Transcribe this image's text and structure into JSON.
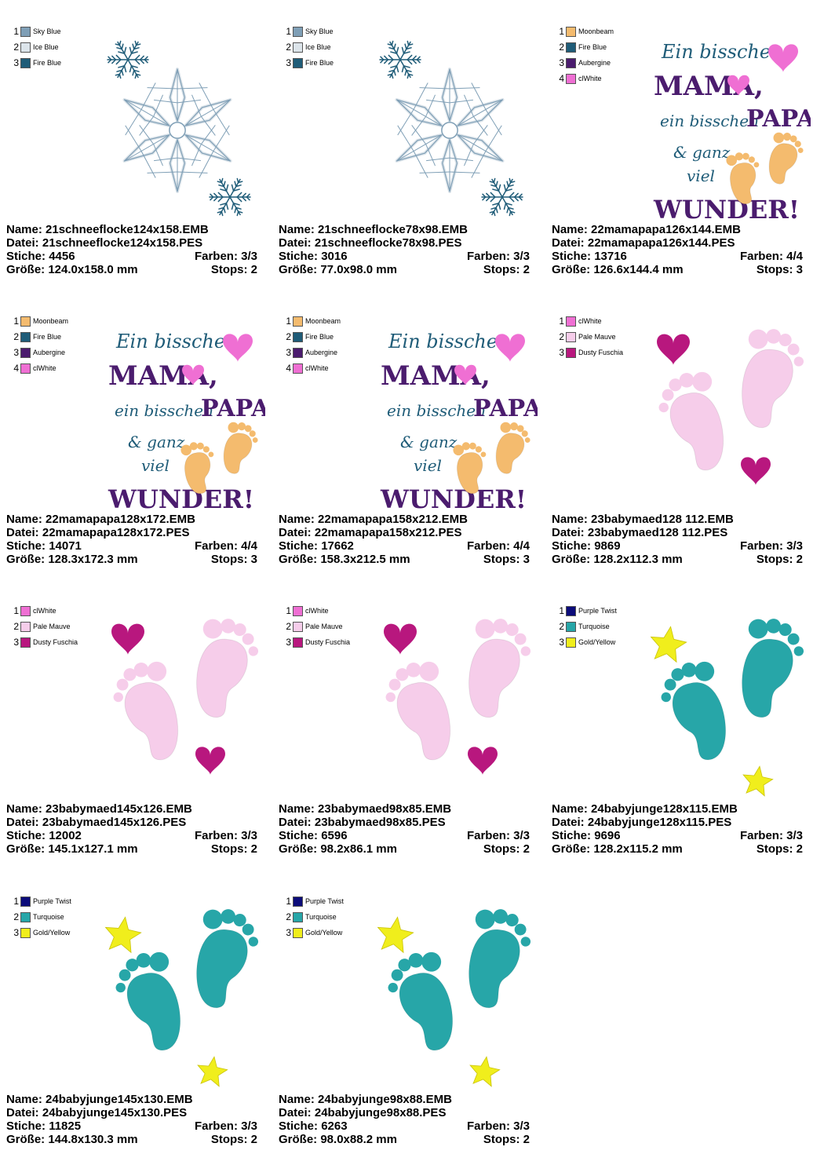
{
  "labels": {
    "name": "Name:",
    "file": "Datei:",
    "stitches": "Stiche:",
    "colors": "Farben:",
    "size": "Größe:",
    "stops": "Stops:"
  },
  "thread_colors": {
    "Sky Blue": "#7f9fb6",
    "Ice Blue": "#dce4ea",
    "Fire Blue": "#1f5c78",
    "Moonbeam": "#f4bb6e",
    "Aubergine": "#4b1c6e",
    "clWhite": "#ef6fd3",
    "Pale Mauve": "#f6cdea",
    "Dusty Fuschia": "#b8177e",
    "Purple Twist": "#0c0c7a",
    "Turquoise": "#27a6a8",
    "Gold/Yellow": "#f0ee1c"
  },
  "design_text": {
    "line1": "Ein bisschen",
    "line2": "MAMA,",
    "line3a": "ein bisschen",
    "line3b": "PAPA,",
    "line4": "& ganz",
    "line5": "viel",
    "line6": "WUNDER!"
  },
  "designs": [
    {
      "motif": "snowflake-icon",
      "threads": [
        {
          "num": "1",
          "name": "Sky Blue"
        },
        {
          "num": "2",
          "name": "Ice Blue"
        },
        {
          "num": "3",
          "name": "Fire Blue"
        }
      ],
      "name": "21schneeflocke124x158.EMB",
      "file": "21schneeflocke124x158.PES",
      "stitches": "4456",
      "colors": "3/3",
      "size": "124.0x158.0 mm",
      "stops": "2"
    },
    {
      "motif": "snowflake-icon",
      "threads": [
        {
          "num": "1",
          "name": "Sky Blue"
        },
        {
          "num": "2",
          "name": "Ice Blue"
        },
        {
          "num": "3",
          "name": "Fire Blue"
        }
      ],
      "name": "21schneeflocke78x98.EMB",
      "file": "21schneeflocke78x98.PES",
      "stitches": "3016",
      "colors": "3/3",
      "size": "77.0x98.0 mm",
      "stops": "2"
    },
    {
      "motif": "mama-papa-text-icon",
      "threads": [
        {
          "num": "1",
          "name": "Moonbeam"
        },
        {
          "num": "2",
          "name": "Fire Blue"
        },
        {
          "num": "3",
          "name": "Aubergine"
        },
        {
          "num": "4",
          "name": "clWhite"
        }
      ],
      "name": "22mamapapa126x144.EMB",
      "file": "22mamapapa126x144.PES",
      "stitches": "13716",
      "colors": "4/4",
      "size": "126.6x144.4 mm",
      "stops": "3"
    },
    {
      "motif": "mama-papa-text-icon",
      "threads": [
        {
          "num": "1",
          "name": "Moonbeam"
        },
        {
          "num": "2",
          "name": "Fire Blue"
        },
        {
          "num": "3",
          "name": "Aubergine"
        },
        {
          "num": "4",
          "name": "clWhite"
        }
      ],
      "name": "22mamapapa128x172.EMB",
      "file": "22mamapapa128x172.PES",
      "stitches": "14071",
      "colors": "4/4",
      "size": "128.3x172.3 mm",
      "stops": "3"
    },
    {
      "motif": "mama-papa-text-icon",
      "threads": [
        {
          "num": "1",
          "name": "Moonbeam"
        },
        {
          "num": "2",
          "name": "Fire Blue"
        },
        {
          "num": "3",
          "name": "Aubergine"
        },
        {
          "num": "4",
          "name": "clWhite"
        }
      ],
      "name": "22mamapapa158x212.EMB",
      "file": "22mamapapa158x212.PES",
      "stitches": "17662",
      "colors": "4/4",
      "size": "158.3x212.5 mm",
      "stops": "3"
    },
    {
      "motif": "baby-feet-hearts-icon",
      "threads": [
        {
          "num": "1",
          "name": "clWhite"
        },
        {
          "num": "2",
          "name": "Pale Mauve"
        },
        {
          "num": "3",
          "name": "Dusty Fuschia"
        }
      ],
      "name": "23babymaed128 112.EMB",
      "file": "23babymaed128 112.PES",
      "stitches": "9869",
      "colors": "3/3",
      "size": "128.2x112.3 mm",
      "stops": "2"
    },
    {
      "motif": "baby-feet-hearts-icon",
      "threads": [
        {
          "num": "1",
          "name": "clWhite"
        },
        {
          "num": "2",
          "name": "Pale Mauve"
        },
        {
          "num": "3",
          "name": "Dusty Fuschia"
        }
      ],
      "name": "23babymaed145x126.EMB",
      "file": "23babymaed145x126.PES",
      "stitches": "12002",
      "colors": "3/3",
      "size": "145.1x127.1 mm",
      "stops": "2"
    },
    {
      "motif": "baby-feet-hearts-icon",
      "threads": [
        {
          "num": "1",
          "name": "clWhite"
        },
        {
          "num": "2",
          "name": "Pale Mauve"
        },
        {
          "num": "3",
          "name": "Dusty Fuschia"
        }
      ],
      "name": "23babymaed98x85.EMB",
      "file": "23babymaed98x85.PES",
      "stitches": "6596",
      "colors": "3/3",
      "size": "98.2x86.1 mm",
      "stops": "2"
    },
    {
      "motif": "baby-feet-stars-icon",
      "threads": [
        {
          "num": "1",
          "name": "Purple Twist"
        },
        {
          "num": "2",
          "name": "Turquoise"
        },
        {
          "num": "3",
          "name": "Gold/Yellow"
        }
      ],
      "name": "24babyjunge128x115.EMB",
      "file": "24babyjunge128x115.PES",
      "stitches": "9696",
      "colors": "3/3",
      "size": "128.2x115.2 mm",
      "stops": "2"
    },
    {
      "motif": "baby-feet-stars-icon",
      "threads": [
        {
          "num": "1",
          "name": "Purple Twist"
        },
        {
          "num": "2",
          "name": "Turquoise"
        },
        {
          "num": "3",
          "name": "Gold/Yellow"
        }
      ],
      "name": "24babyjunge145x130.EMB",
      "file": "24babyjunge145x130.PES",
      "stitches": "11825",
      "colors": "3/3",
      "size": "144.8x130.3 mm",
      "stops": "2"
    },
    {
      "motif": "baby-feet-stars-icon",
      "threads": [
        {
          "num": "1",
          "name": "Purple Twist"
        },
        {
          "num": "2",
          "name": "Turquoise"
        },
        {
          "num": "3",
          "name": "Gold/Yellow"
        }
      ],
      "name": "24babyjunge98x88.EMB",
      "file": "24babyjunge98x88.PES",
      "stitches": "6263",
      "colors": "3/3",
      "size": "98.0x88.2 mm",
      "stops": "2"
    }
  ]
}
